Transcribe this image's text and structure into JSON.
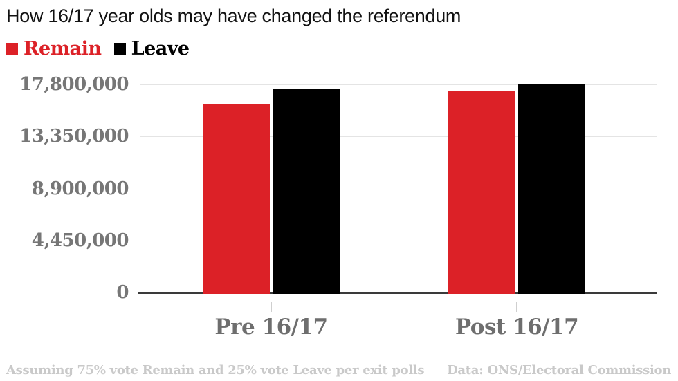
{
  "title": "How 16/17 year olds may have changed the referendum",
  "legend": [
    {
      "label": "Remain",
      "color": "#dc2127"
    },
    {
      "label": "Leave",
      "color": "#000000"
    }
  ],
  "footnote": "Assuming 75% vote Remain and 25% vote Leave per exit polls",
  "source": "Data: ONS/Electoral Commission",
  "colors": {
    "remain": "#dc2127",
    "leave": "#000000",
    "axis_text": "#767676",
    "category_text": "#6e6e6e",
    "gridline": "#e4e4e4",
    "baseline": "#3a3a3a",
    "footer_text": "#c9c9c9"
  },
  "chart_data": {
    "type": "bar",
    "title": "How 16/17 year olds may have changed the referendum",
    "categories": [
      "Pre 16/17",
      "Post 16/17"
    ],
    "series": [
      {
        "name": "Remain",
        "color": "#dc2127",
        "values": [
          16141241,
          17236241
        ]
      },
      {
        "name": "Leave",
        "color": "#000000",
        "values": [
          17410742,
          17775742
        ]
      }
    ],
    "xlabel": "",
    "ylabel": "",
    "ylim": [
      0,
      17800000
    ],
    "yticks": [
      {
        "value": 17800000,
        "label": "17,800,000"
      },
      {
        "value": 13350000,
        "label": "13,350,000"
      },
      {
        "value": 8900000,
        "label": "8,900,000"
      },
      {
        "value": 4450000,
        "label": "4,450,000"
      },
      {
        "value": 0,
        "label": "0"
      }
    ],
    "grid": "horizontal",
    "legend_position": "top-left",
    "footnote": "Assuming 75% vote Remain and 25% vote Leave per exit polls",
    "source": "Data: ONS/Electoral Commission"
  }
}
